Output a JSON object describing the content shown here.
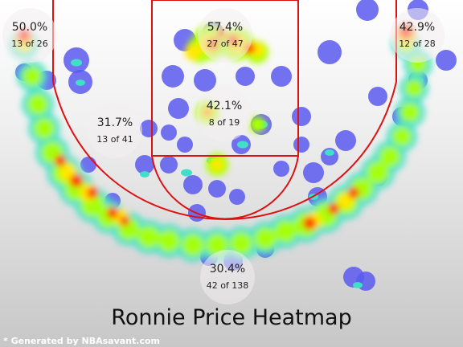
{
  "title": "Ronnie Price Heatmap",
  "credit": "* Generated by NBAsavant.com",
  "colors": {
    "court_line": "#dd1111",
    "cold": "#5a5af0",
    "cool": "#40e0c8",
    "mid": "#aaff00",
    "warm": "#ffe800",
    "hot": "#ff2200",
    "zone_circle": "#f4eef0"
  },
  "chart_data": {
    "type": "heatmap",
    "title": "Ronnie Price Heatmap",
    "zones": [
      {
        "id": "left-corner",
        "pct": "50.0%",
        "made_of": "13 of 26",
        "made": 13,
        "attempts": 26
      },
      {
        "id": "restricted-area",
        "pct": "57.4%",
        "made_of": "27 of 47",
        "made": 27,
        "attempts": 47
      },
      {
        "id": "right-corner",
        "pct": "42.9%",
        "made_of": "12 of 28",
        "made": 12,
        "attempts": 28
      },
      {
        "id": "left-midrange",
        "pct": "31.7%",
        "made_of": "13 of 41",
        "made": 13,
        "attempts": 41
      },
      {
        "id": "paint",
        "pct": "42.1%",
        "made_of": "8 of 19",
        "made": 8,
        "attempts": 19
      },
      {
        "id": "above-break-three",
        "pct": "30.4%",
        "made_of": "42 of 138",
        "made": 42,
        "attempts": 138
      }
    ]
  }
}
